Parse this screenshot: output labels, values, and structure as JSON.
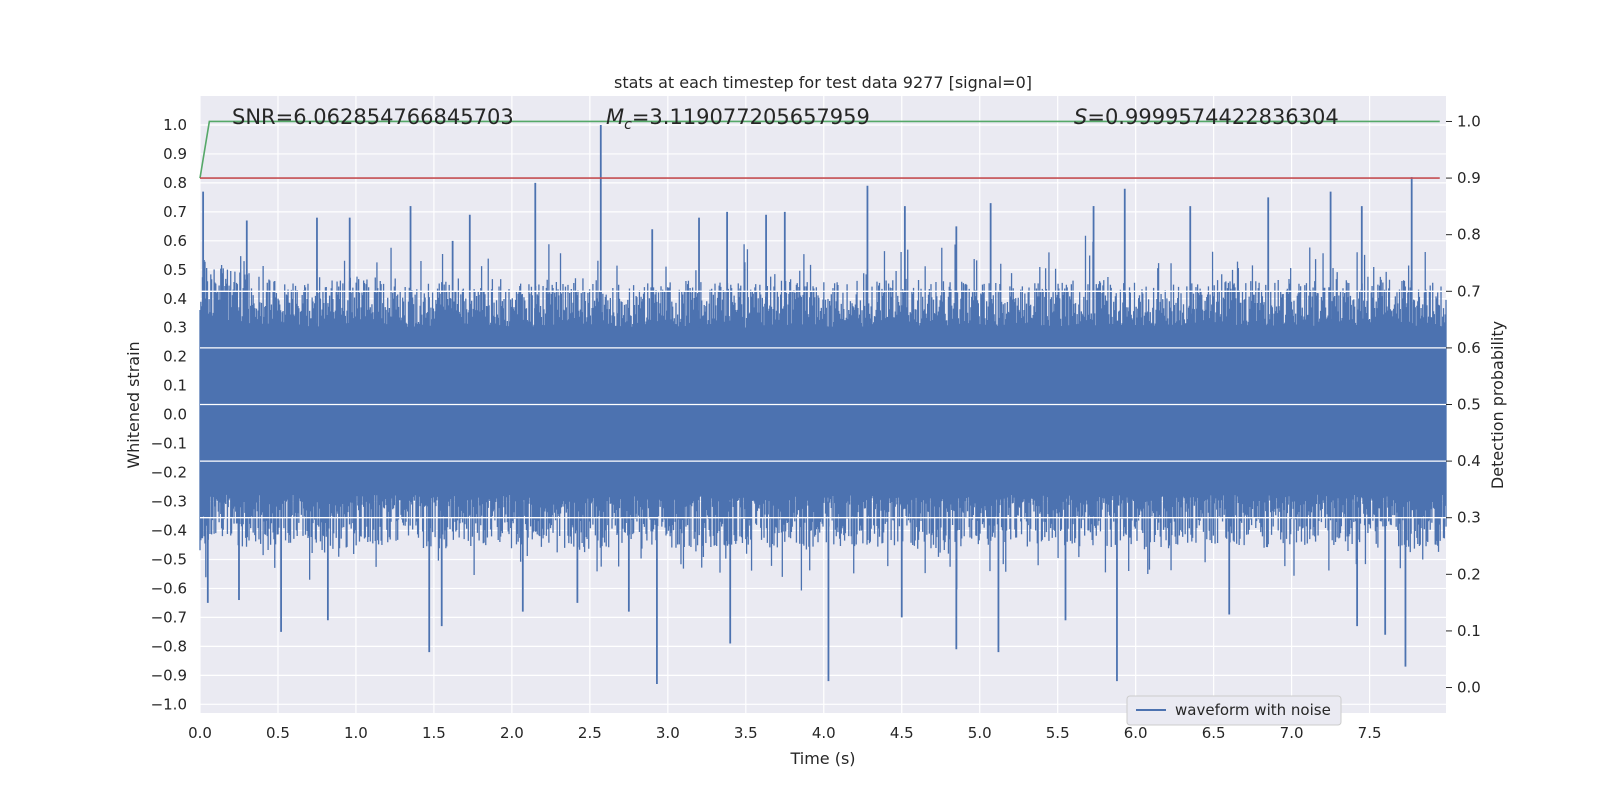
{
  "chart_data": {
    "type": "line",
    "title": "stats at each timestep for test data 9277 [signal=0]",
    "xlabel": "Time (s)",
    "ylabel": "Whitened strain",
    "y2label": "Detection probability",
    "xlim": [
      0.0,
      7.99
    ],
    "ylim": [
      -1.03,
      1.1
    ],
    "y2lim": [
      -0.045,
      1.045
    ],
    "x_ticks": [
      0.0,
      0.5,
      1.0,
      1.5,
      2.0,
      2.5,
      3.0,
      3.5,
      4.0,
      4.5,
      5.0,
      5.5,
      6.0,
      6.5,
      7.0,
      7.5
    ],
    "x_tick_labels": [
      "0.0",
      "0.5",
      "1.0",
      "1.5",
      "2.0",
      "2.5",
      "3.0",
      "3.5",
      "4.0",
      "4.5",
      "5.0",
      "5.5",
      "6.0",
      "6.5",
      "7.0",
      "7.5"
    ],
    "y_ticks": [
      1.0,
      0.9,
      0.8,
      0.7,
      0.6,
      0.5,
      0.4,
      0.3,
      0.2,
      0.1,
      0.0,
      -0.1,
      -0.2,
      -0.3,
      -0.4,
      -0.5,
      -0.6,
      -0.7,
      -0.8,
      -0.9,
      -1.0
    ],
    "y_tick_labels": [
      "1.0",
      "0.9",
      "0.8",
      "0.7",
      "0.6",
      "0.5",
      "0.4",
      "0.3",
      "0.2",
      "0.1",
      "0.0",
      "−0.1",
      "−0.2",
      "−0.3",
      "−0.4",
      "−0.5",
      "−0.6",
      "−0.7",
      "−0.8",
      "−0.9",
      "−1.0"
    ],
    "y2_ticks": [
      1.0,
      0.9,
      0.8,
      0.7,
      0.6,
      0.5,
      0.4,
      0.3,
      0.2,
      0.1,
      0.0
    ],
    "y2_tick_labels": [
      "1.0",
      "0.9",
      "0.8",
      "0.7",
      "0.6",
      "0.5",
      "0.4",
      "0.3",
      "0.2",
      "0.1",
      "0.0"
    ],
    "grid": true,
    "legend": {
      "placement": "lower-right",
      "entries": [
        "waveform with noise"
      ]
    },
    "annotations": {
      "snr": "SNR=6.062854766845703",
      "mc_symbol": "M",
      "mc_sub": "c",
      "mc_value": "=3.119077205657959",
      "s_symbol": "S",
      "s_value": "=0.9999574422836304"
    },
    "series": [
      {
        "name": "waveform with noise",
        "axis": "left",
        "color": "#4c72b0",
        "envelope_x": [
          0.0,
          0.25,
          0.5,
          0.75,
          1.0,
          1.25,
          1.5,
          1.75,
          2.0,
          2.25,
          2.5,
          2.75,
          3.0,
          3.25,
          3.5,
          3.75,
          4.0,
          4.25,
          4.5,
          4.75,
          5.0,
          5.25,
          5.5,
          5.75,
          6.0,
          6.25,
          6.5,
          6.75,
          7.0,
          7.25,
          7.5,
          7.75,
          7.99
        ],
        "envelope_top": [
          0.55,
          0.5,
          0.46,
          0.45,
          0.5,
          0.45,
          0.46,
          0.44,
          0.45,
          0.47,
          0.48,
          0.45,
          0.46,
          0.47,
          0.45,
          0.47,
          0.46,
          0.45,
          0.48,
          0.46,
          0.47,
          0.45,
          0.46,
          0.47,
          0.46,
          0.45,
          0.47,
          0.46,
          0.47,
          0.46,
          0.48,
          0.47,
          0.45
        ],
        "envelope_bottom": [
          -0.45,
          -0.46,
          -0.45,
          -0.47,
          -0.46,
          -0.45,
          -0.47,
          -0.46,
          -0.45,
          -0.46,
          -0.47,
          -0.45,
          -0.46,
          -0.46,
          -0.45,
          -0.47,
          -0.45,
          -0.46,
          -0.46,
          -0.47,
          -0.45,
          -0.46,
          -0.46,
          -0.45,
          -0.47,
          -0.46,
          -0.45,
          -0.46,
          -0.46,
          -0.45,
          -0.46,
          -0.47,
          -0.45
        ],
        "peaks": [
          {
            "x": 0.02,
            "y": 0.77
          },
          {
            "x": 0.3,
            "y": 0.67
          },
          {
            "x": 0.75,
            "y": 0.68
          },
          {
            "x": 0.96,
            "y": 0.68
          },
          {
            "x": 1.35,
            "y": 0.72
          },
          {
            "x": 1.62,
            "y": 0.6
          },
          {
            "x": 1.73,
            "y": 0.69
          },
          {
            "x": 2.15,
            "y": 0.8
          },
          {
            "x": 2.57,
            "y": 1.0
          },
          {
            "x": 2.9,
            "y": 0.64
          },
          {
            "x": 3.2,
            "y": 0.68
          },
          {
            "x": 3.38,
            "y": 0.7
          },
          {
            "x": 3.63,
            "y": 0.69
          },
          {
            "x": 3.75,
            "y": 0.7
          },
          {
            "x": 4.28,
            "y": 0.79
          },
          {
            "x": 4.52,
            "y": 0.72
          },
          {
            "x": 4.85,
            "y": 0.65
          },
          {
            "x": 5.07,
            "y": 0.73
          },
          {
            "x": 5.73,
            "y": 0.72
          },
          {
            "x": 5.93,
            "y": 0.78
          },
          {
            "x": 6.35,
            "y": 0.72
          },
          {
            "x": 6.85,
            "y": 0.75
          },
          {
            "x": 7.25,
            "y": 0.77
          },
          {
            "x": 7.45,
            "y": 0.72
          },
          {
            "x": 7.77,
            "y": 0.82
          }
        ],
        "troughs": [
          {
            "x": 0.05,
            "y": -0.65
          },
          {
            "x": 0.25,
            "y": -0.64
          },
          {
            "x": 0.52,
            "y": -0.75
          },
          {
            "x": 0.82,
            "y": -0.71
          },
          {
            "x": 1.47,
            "y": -0.82
          },
          {
            "x": 1.55,
            "y": -0.73
          },
          {
            "x": 2.07,
            "y": -0.68
          },
          {
            "x": 2.42,
            "y": -0.65
          },
          {
            "x": 2.75,
            "y": -0.68
          },
          {
            "x": 2.93,
            "y": -0.93
          },
          {
            "x": 3.4,
            "y": -0.79
          },
          {
            "x": 4.03,
            "y": -0.92
          },
          {
            "x": 4.5,
            "y": -0.7
          },
          {
            "x": 4.85,
            "y": -0.81
          },
          {
            "x": 5.12,
            "y": -0.82
          },
          {
            "x": 5.55,
            "y": -0.71
          },
          {
            "x": 5.88,
            "y": -0.92
          },
          {
            "x": 6.6,
            "y": -0.69
          },
          {
            "x": 7.42,
            "y": -0.73
          },
          {
            "x": 7.6,
            "y": -0.76
          },
          {
            "x": 7.73,
            "y": -0.87
          }
        ]
      },
      {
        "name": "",
        "axis": "right",
        "color": "#55a868",
        "x": [
          0.0,
          0.06,
          7.95
        ],
        "y": [
          0.9,
          1.0,
          1.0
        ]
      },
      {
        "name": "",
        "axis": "right",
        "color": "#c44e52",
        "x": [
          0.0,
          7.95
        ],
        "y": [
          0.9,
          0.9
        ]
      }
    ]
  }
}
